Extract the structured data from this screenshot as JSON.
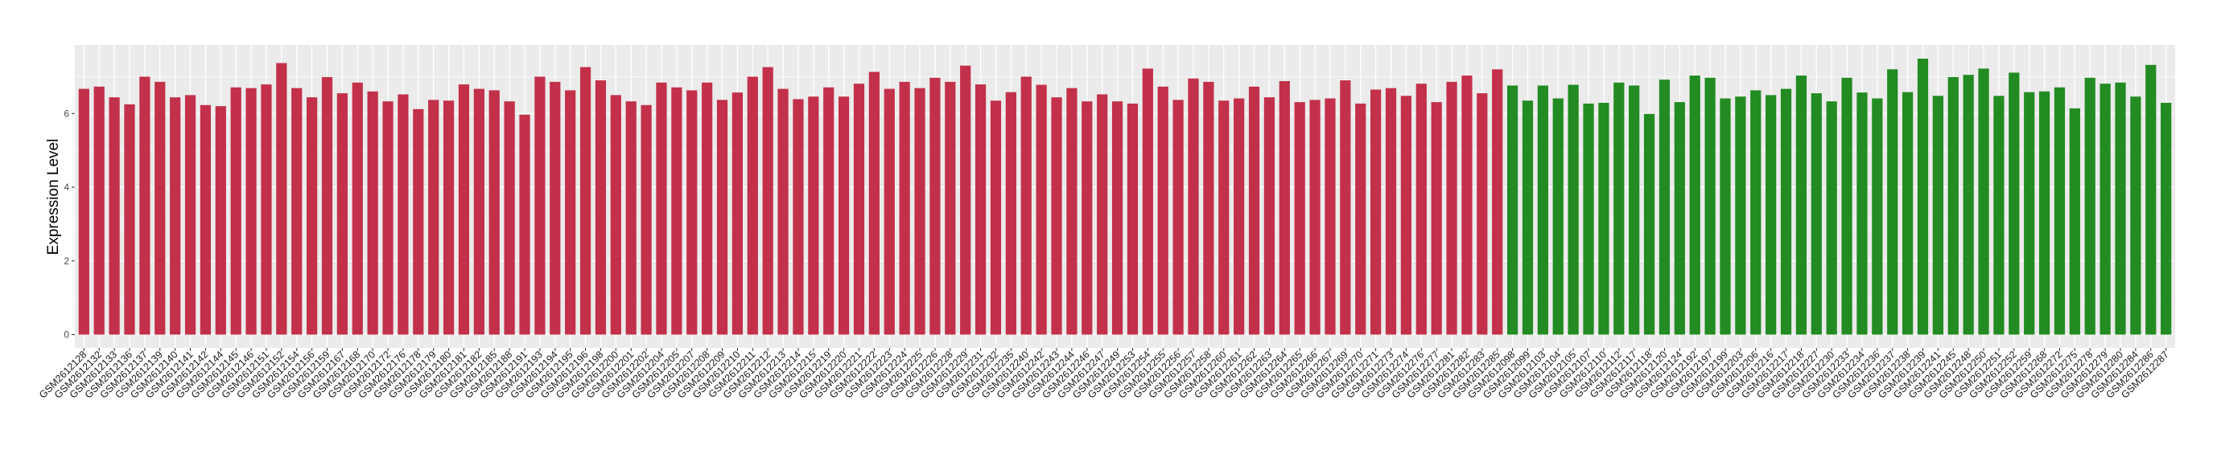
{
  "chart_data": {
    "type": "bar",
    "title": "",
    "xlabel": "",
    "ylabel": "Expression Level",
    "ylim": [
      -0.36,
      7.86
    ],
    "yticks": [
      0,
      2,
      4,
      6
    ],
    "grid": true,
    "legend": "none",
    "colors": {
      "group1": "#C3304A",
      "group2": "#228B22",
      "panel": "#EBEBEB",
      "grid": "#FFFFFF"
    },
    "categories": [
      "GSM2612128",
      "GSM2612132",
      "GSM2612133",
      "GSM2612136",
      "GSM2612137",
      "GSM2612139",
      "GSM2612140",
      "GSM2612141",
      "GSM2612142",
      "GSM2612144",
      "GSM2612145",
      "GSM2612146",
      "GSM2612151",
      "GSM2612152",
      "GSM2612154",
      "GSM2612156",
      "GSM2612159",
      "GSM2612167",
      "GSM2612168",
      "GSM2612170",
      "GSM2612172",
      "GSM2612176",
      "GSM2612178",
      "GSM2612179",
      "GSM2612180",
      "GSM2612181",
      "GSM2612182",
      "GSM2612185",
      "GSM2612188",
      "GSM2612191",
      "GSM2612193",
      "GSM2612194",
      "GSM2612195",
      "GSM2612196",
      "GSM2612198",
      "GSM2612200",
      "GSM2612201",
      "GSM2612202",
      "GSM2612204",
      "GSM2612205",
      "GSM2612207",
      "GSM2612208",
      "GSM2612209",
      "GSM2612210",
      "GSM2612211",
      "GSM2612212",
      "GSM2612213",
      "GSM2612214",
      "GSM2612215",
      "GSM2612219",
      "GSM2612220",
      "GSM2612221",
      "GSM2612222",
      "GSM2612223",
      "GSM2612224",
      "GSM2612225",
      "GSM2612226",
      "GSM2612228",
      "GSM2612229",
      "GSM2612231",
      "GSM2612232",
      "GSM2612235",
      "GSM2612240",
      "GSM2612242",
      "GSM2612243",
      "GSM2612244",
      "GSM2612246",
      "GSM2612247",
      "GSM2612249",
      "GSM2612253",
      "GSM2612254",
      "GSM2612255",
      "GSM2612256",
      "GSM2612257",
      "GSM2612258",
      "GSM2612260",
      "GSM2612261",
      "GSM2612262",
      "GSM2612263",
      "GSM2612264",
      "GSM2612265",
      "GSM2612266",
      "GSM2612267",
      "GSM2612269",
      "GSM2612270",
      "GSM2612271",
      "GSM2612273",
      "GSM2612274",
      "GSM2612276",
      "GSM2612277",
      "GSM2612281",
      "GSM2612282",
      "GSM2612283",
      "GSM2612285",
      "GSM2612098",
      "GSM2612099",
      "GSM2612103",
      "GSM2612104",
      "GSM2612105",
      "GSM2612107",
      "GSM2612110",
      "GSM2612112",
      "GSM2612117",
      "GSM2612118",
      "GSM2612120",
      "GSM2612124",
      "GSM2612192",
      "GSM2612197",
      "GSM2612199",
      "GSM2612203",
      "GSM2612206",
      "GSM2612216",
      "GSM2612217",
      "GSM2612218",
      "GSM2612227",
      "GSM2612230",
      "GSM2612233",
      "GSM2612234",
      "GSM2612236",
      "GSM2612237",
      "GSM2612238",
      "GSM2612239",
      "GSM2612241",
      "GSM2612245",
      "GSM2612248",
      "GSM2612250",
      "GSM2612251",
      "GSM2612252",
      "GSM2612259",
      "GSM2612268",
      "GSM2612272",
      "GSM2612275",
      "GSM2612278",
      "GSM2612279",
      "GSM2612280",
      "GSM2612284",
      "GSM2612286",
      "GSM2612287"
    ],
    "values": [
      6.67,
      6.73,
      6.44,
      6.25,
      7.0,
      6.86,
      6.44,
      6.5,
      6.23,
      6.2,
      6.71,
      6.69,
      6.79,
      7.37,
      6.69,
      6.44,
      6.99,
      6.55,
      6.84,
      6.6,
      6.33,
      6.52,
      6.12,
      6.37,
      6.35,
      6.79,
      6.67,
      6.63,
      6.33,
      5.97,
      7.0,
      6.86,
      6.63,
      7.26,
      6.9,
      6.5,
      6.33,
      6.23,
      6.84,
      6.71,
      6.63,
      6.84,
      6.37,
      6.57,
      7.0,
      7.26,
      6.67,
      6.39,
      6.46,
      6.71,
      6.46,
      6.81,
      7.13,
      6.67,
      6.86,
      6.69,
      6.97,
      6.86,
      7.3,
      6.79,
      6.35,
      6.58,
      7.0,
      6.78,
      6.44,
      6.69,
      6.33,
      6.52,
      6.33,
      6.27,
      7.22,
      6.73,
      6.37,
      6.95,
      6.86,
      6.35,
      6.41,
      6.73,
      6.44,
      6.88,
      6.31,
      6.37,
      6.41,
      6.9,
      6.27,
      6.65,
      6.69,
      6.48,
      6.81,
      6.31,
      6.86,
      7.03,
      6.55,
      7.2,
      6.76,
      6.35,
      6.76,
      6.41,
      6.78,
      6.27,
      6.29,
      6.84,
      6.76,
      5.99,
      6.92,
      6.31,
      7.03,
      6.97,
      6.41,
      6.46,
      6.63,
      6.5,
      6.67,
      7.03,
      6.55,
      6.33,
      6.97,
      6.57,
      6.41,
      7.2,
      6.58,
      7.49,
      6.48,
      6.99,
      7.05,
      7.22,
      6.48,
      7.11,
      6.58,
      6.6,
      6.71,
      6.14,
      6.97,
      6.81,
      6.84,
      6.46,
      7.32,
      6.29
    ],
    "groups": [
      "group1",
      "group1",
      "group1",
      "group1",
      "group1",
      "group1",
      "group1",
      "group1",
      "group1",
      "group1",
      "group1",
      "group1",
      "group1",
      "group1",
      "group1",
      "group1",
      "group1",
      "group1",
      "group1",
      "group1",
      "group1",
      "group1",
      "group1",
      "group1",
      "group1",
      "group1",
      "group1",
      "group1",
      "group1",
      "group1",
      "group1",
      "group1",
      "group1",
      "group1",
      "group1",
      "group1",
      "group1",
      "group1",
      "group1",
      "group1",
      "group1",
      "group1",
      "group1",
      "group1",
      "group1",
      "group1",
      "group1",
      "group1",
      "group1",
      "group1",
      "group1",
      "group1",
      "group1",
      "group1",
      "group1",
      "group1",
      "group1",
      "group1",
      "group1",
      "group1",
      "group1",
      "group1",
      "group1",
      "group1",
      "group1",
      "group1",
      "group1",
      "group1",
      "group1",
      "group1",
      "group1",
      "group1",
      "group1",
      "group1",
      "group1",
      "group1",
      "group1",
      "group1",
      "group1",
      "group1",
      "group1",
      "group1",
      "group1",
      "group1",
      "group1",
      "group1",
      "group1",
      "group1",
      "group1",
      "group1",
      "group1",
      "group1",
      "group1",
      "group1",
      "group2",
      "group2",
      "group2",
      "group2",
      "group2",
      "group2",
      "group2",
      "group2",
      "group2",
      "group2",
      "group2",
      "group2",
      "group2",
      "group2",
      "group2",
      "group2",
      "group2",
      "group2",
      "group2",
      "group2",
      "group2",
      "group2",
      "group2",
      "group2",
      "group2",
      "group2",
      "group2",
      "group2",
      "group2",
      "group2",
      "group2",
      "group2",
      "group2",
      "group2",
      "group2",
      "group2",
      "group2",
      "group2",
      "group2",
      "group2",
      "group2",
      "group2",
      "group2",
      "group2"
    ]
  }
}
